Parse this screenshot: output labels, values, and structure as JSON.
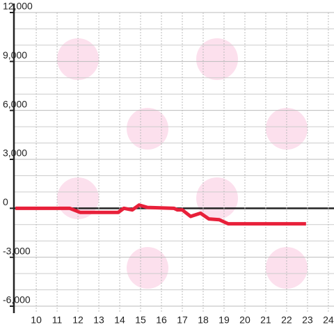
{
  "chart_data": {
    "type": "line",
    "x": [
      9,
      11.6,
      12.1,
      13.93,
      14.2,
      14.6,
      14.93,
      15.33,
      16.6,
      16.77,
      17,
      17.4,
      17.87,
      18.27,
      18.77,
      19.2,
      22.93
    ],
    "series": [
      {
        "color": "#e8203a",
        "values": [
          0,
          0,
          -250,
          -250,
          0,
          -100,
          200,
          50,
          0,
          -100,
          -100,
          -500,
          -300,
          -650,
          -700,
          -950,
          -950
        ]
      }
    ],
    "xlim": [
      8.93,
      24.27
    ],
    "xticks": [
      10,
      11,
      12,
      13,
      14,
      15,
      16,
      17,
      18,
      19,
      20,
      21,
      22,
      23,
      24
    ],
    "ylim": [
      -6000,
      12000
    ],
    "yticks": [
      {
        "value": -6000,
        "label": "-6,000"
      },
      {
        "value": -3000,
        "label": "-3,000"
      },
      0,
      {
        "value": 3000,
        "label": "3,000"
      },
      {
        "value": 6000,
        "label": "6,000"
      },
      {
        "value": 9000,
        "label": "9,000"
      },
      {
        "value": 12000,
        "label": "12,000"
      }
    ],
    "grid": true
  }
}
